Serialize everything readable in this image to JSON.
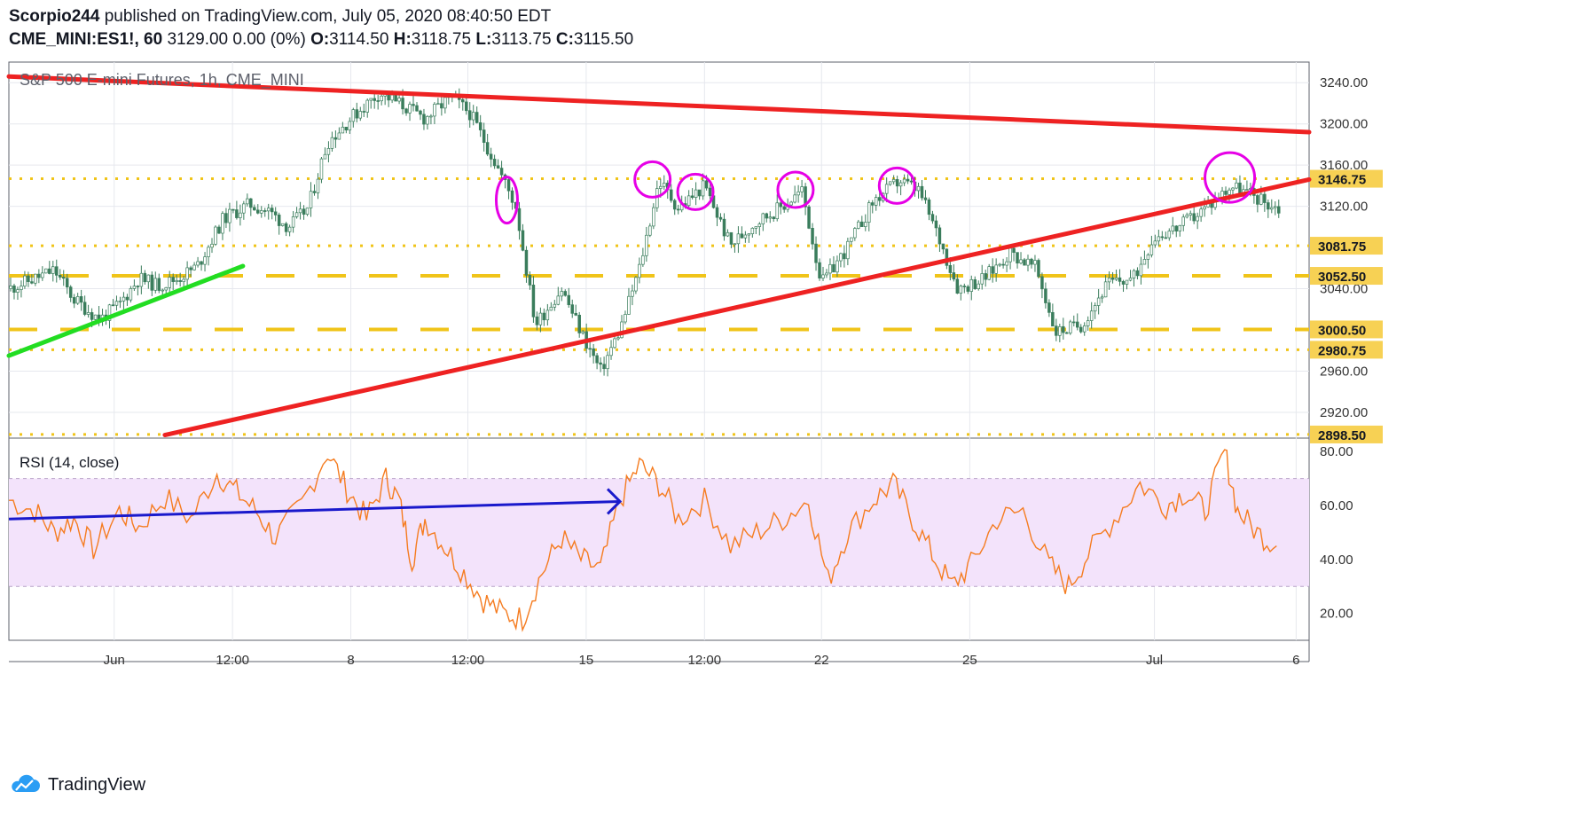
{
  "header": {
    "author": "Scorpio244",
    "published_text": "published on TradingView.com, July 05, 2020 08:40:50 EDT",
    "symbol": "CME_MINI:ES1!, 60",
    "last": "3129.00",
    "change": "0.00 (0%)",
    "open_label": "O:",
    "open": "3114.50",
    "high_label": "H:",
    "high": "3118.75",
    "low_label": "L:",
    "low": "3113.75",
    "close_label": "C:",
    "close": "3115.50"
  },
  "footer": {
    "brand": "TradingView",
    "logo_icon": "tradingview-cloud-icon"
  },
  "colors": {
    "trendline": "#ee2222",
    "support_line": "#22dd22",
    "rsi_trendline": "#1a1acc",
    "level_line": "#f0c419",
    "level_badge": "#f7d154",
    "highlight_circle": "#e600e6",
    "rsi_line": "#f57c20",
    "rsi_band": "#f3e3fb",
    "candle": "#3a7d5c"
  },
  "chart_data": [
    {
      "type": "candlestick",
      "title": "S&P 500 E-mini Futures, 1h, CME_MINI",
      "x_tick_labels": [
        "Jun",
        "12:00",
        "8",
        "12:00",
        "15",
        "12:00",
        "22",
        "25",
        "Jul",
        "6"
      ],
      "y_tick_labels": [
        "3240.00",
        "3200.00",
        "3160.00",
        "3120.00",
        "3040.00",
        "2960.00",
        "2920.00"
      ],
      "ylim": [
        2895,
        3260
      ],
      "price_levels": [
        {
          "label": "3146.75",
          "value": 3146.75,
          "style": "dotted"
        },
        {
          "label": "3081.75",
          "value": 3081.75,
          "style": "dotted"
        },
        {
          "label": "3052.50",
          "value": 3052.5,
          "style": "dashed"
        },
        {
          "label": "3000.50",
          "value": 3000.5,
          "style": "dashed"
        },
        {
          "label": "2980.75",
          "value": 2980.75,
          "style": "dotted"
        },
        {
          "label": "2898.50",
          "value": 2898.5,
          "style": "dotted"
        }
      ],
      "trendlines": [
        {
          "name": "upper resistance",
          "color": "red",
          "points": [
            [
              0.0,
              3246
            ],
            [
              1.0,
              3192
            ]
          ]
        },
        {
          "name": "rising support",
          "color": "red",
          "points": [
            [
              0.12,
              2898
            ],
            [
              1.0,
              3146
            ]
          ]
        },
        {
          "name": "early support",
          "color": "green",
          "points": [
            [
              0.0,
              2975
            ],
            [
              0.18,
              3062
            ]
          ]
        }
      ],
      "highlights": [
        {
          "x": 0.383,
          "y": 3126
        },
        {
          "x": 0.495,
          "y": 3146
        },
        {
          "x": 0.528,
          "y": 3134
        },
        {
          "x": 0.605,
          "y": 3136
        },
        {
          "x": 0.683,
          "y": 3140
        },
        {
          "x": 0.939,
          "y": 3148
        }
      ],
      "price_path": [
        [
          0.0,
          3040
        ],
        [
          0.02,
          3050
        ],
        [
          0.035,
          3058
        ],
        [
          0.05,
          3030
        ],
        [
          0.07,
          3010
        ],
        [
          0.085,
          3025
        ],
        [
          0.1,
          3050
        ],
        [
          0.115,
          3043
        ],
        [
          0.13,
          3050
        ],
        [
          0.145,
          3062
        ],
        [
          0.165,
          3108
        ],
        [
          0.185,
          3122
        ],
        [
          0.2,
          3115
        ],
        [
          0.215,
          3100
        ],
        [
          0.23,
          3118
        ],
        [
          0.245,
          3182
        ],
        [
          0.265,
          3208
        ],
        [
          0.285,
          3230
        ],
        [
          0.3,
          3220
        ],
        [
          0.32,
          3205
        ],
        [
          0.34,
          3226
        ],
        [
          0.355,
          3210
        ],
        [
          0.375,
          3160
        ],
        [
          0.39,
          3120
        ],
        [
          0.405,
          3005
        ],
        [
          0.425,
          3040
        ],
        [
          0.44,
          2998
        ],
        [
          0.455,
          2960
        ],
        [
          0.47,
          3000
        ],
        [
          0.485,
          3060
        ],
        [
          0.5,
          3145
        ],
        [
          0.515,
          3118
        ],
        [
          0.535,
          3140
        ],
        [
          0.555,
          3082
        ],
        [
          0.575,
          3105
        ],
        [
          0.595,
          3120
        ],
        [
          0.61,
          3135
        ],
        [
          0.625,
          3045
        ],
        [
          0.645,
          3080
        ],
        [
          0.665,
          3125
        ],
        [
          0.685,
          3145
        ],
        [
          0.7,
          3135
        ],
        [
          0.715,
          3090
        ],
        [
          0.73,
          3040
        ],
        [
          0.75,
          3050
        ],
        [
          0.77,
          3075
        ],
        [
          0.79,
          3060
        ],
        [
          0.805,
          2998
        ],
        [
          0.825,
          3005
        ],
        [
          0.845,
          3045
        ],
        [
          0.865,
          3050
        ],
        [
          0.88,
          3090
        ],
        [
          0.9,
          3100
        ],
        [
          0.92,
          3118
        ],
        [
          0.94,
          3140
        ],
        [
          0.955,
          3132
        ],
        [
          0.975,
          3118
        ]
      ]
    },
    {
      "type": "line",
      "title": "RSI (14, close)",
      "y_tick_labels": [
        "80.00",
        "60.00",
        "40.00",
        "20.00"
      ],
      "ylim": [
        10,
        85
      ],
      "bands": [
        30,
        70
      ],
      "trendline": {
        "color": "blue",
        "points": [
          [
            0.0,
            55
          ],
          [
            0.47,
            61.5
          ]
        ]
      },
      "series": [
        {
          "values": [
            [
              0.0,
              62
            ],
            [
              0.02,
              58
            ],
            [
              0.035,
              50
            ],
            [
              0.05,
              55
            ],
            [
              0.065,
              44
            ],
            [
              0.085,
              58
            ],
            [
              0.1,
              52
            ],
            [
              0.12,
              63
            ],
            [
              0.14,
              55
            ],
            [
              0.16,
              72
            ],
            [
              0.175,
              65
            ],
            [
              0.19,
              58
            ],
            [
              0.205,
              48
            ],
            [
              0.225,
              60
            ],
            [
              0.245,
              80
            ],
            [
              0.26,
              66
            ],
            [
              0.275,
              55
            ],
            [
              0.29,
              70
            ],
            [
              0.3,
              62
            ],
            [
              0.31,
              40
            ],
            [
              0.32,
              55
            ],
            [
              0.335,
              45
            ],
            [
              0.35,
              35
            ],
            [
              0.365,
              25
            ],
            [
              0.38,
              20
            ],
            [
              0.395,
              18
            ],
            [
              0.41,
              35
            ],
            [
              0.425,
              48
            ],
            [
              0.44,
              40
            ],
            [
              0.455,
              36
            ],
            [
              0.47,
              62
            ],
            [
              0.485,
              75
            ],
            [
              0.5,
              68
            ],
            [
              0.515,
              55
            ],
            [
              0.535,
              62
            ],
            [
              0.555,
              45
            ],
            [
              0.575,
              50
            ],
            [
              0.595,
              55
            ],
            [
              0.615,
              62
            ],
            [
              0.63,
              32
            ],
            [
              0.645,
              50
            ],
            [
              0.665,
              62
            ],
            [
              0.68,
              68
            ],
            [
              0.695,
              55
            ],
            [
              0.71,
              42
            ],
            [
              0.725,
              30
            ],
            [
              0.74,
              38
            ],
            [
              0.76,
              55
            ],
            [
              0.78,
              58
            ],
            [
              0.8,
              38
            ],
            [
              0.815,
              30
            ],
            [
              0.83,
              42
            ],
            [
              0.85,
              55
            ],
            [
              0.87,
              68
            ],
            [
              0.89,
              60
            ],
            [
              0.905,
              65
            ],
            [
              0.92,
              58
            ],
            [
              0.935,
              80
            ],
            [
              0.945,
              58
            ],
            [
              0.96,
              50
            ],
            [
              0.975,
              45
            ]
          ]
        }
      ]
    }
  ]
}
